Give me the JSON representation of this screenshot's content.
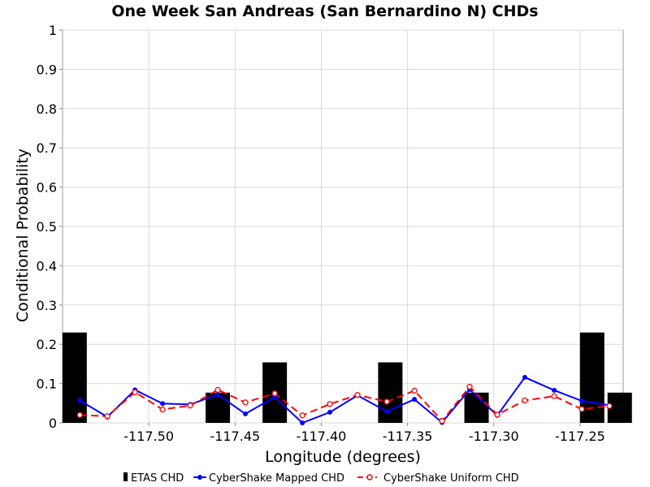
{
  "chart_data": {
    "type": "bar+line",
    "title": "One Week San Andreas (San Bernardino N) CHDs",
    "xlabel": "Longitude (degrees)",
    "ylabel": "Conditional Probability",
    "xlim": [
      -117.55,
      -117.225
    ],
    "ylim": [
      0,
      1
    ],
    "xticks": [
      "-117.50",
      "-117.45",
      "-117.40",
      "-117.35",
      "-117.30",
      "-117.25"
    ],
    "yticks": [
      "0",
      "0.1",
      "0.2",
      "0.3",
      "0.4",
      "0.5",
      "0.6",
      "0.7",
      "0.8",
      "0.9",
      "1"
    ],
    "grid": true,
    "legend_position": "bottom",
    "bars": {
      "name": "ETAS CHD",
      "color": "#000000",
      "x": [
        -117.543,
        -117.46,
        -117.427,
        -117.36,
        -117.31,
        -117.243,
        -117.227
      ],
      "values": [
        0.23,
        0.077,
        0.154,
        0.154,
        0.077,
        0.23,
        0.077
      ]
    },
    "series": [
      {
        "name": "CyberShake Mapped CHD",
        "color": "#0000ff",
        "style": "solid",
        "marker": "filled-circle",
        "x": [
          -117.54,
          -117.524,
          -117.508,
          -117.492,
          -117.476,
          -117.46,
          -117.444,
          -117.427,
          -117.411,
          -117.395,
          -117.379,
          -117.362,
          -117.346,
          -117.33,
          -117.314,
          -117.298,
          -117.282,
          -117.265,
          -117.249,
          -117.233
        ],
        "values": [
          0.057,
          0.015,
          0.084,
          0.049,
          0.047,
          0.072,
          0.023,
          0.066,
          0.0,
          0.027,
          0.07,
          0.029,
          0.06,
          0.001,
          0.085,
          0.019,
          0.116,
          0.083,
          0.056,
          0.045
        ]
      },
      {
        "name": "CyberShake Uniform CHD",
        "color": "#ff0000",
        "style": "dashed",
        "marker": "open-circle",
        "x": [
          -117.54,
          -117.524,
          -117.508,
          -117.492,
          -117.476,
          -117.46,
          -117.444,
          -117.427,
          -117.411,
          -117.395,
          -117.379,
          -117.362,
          -117.346,
          -117.33,
          -117.314,
          -117.298,
          -117.282,
          -117.265,
          -117.249,
          -117.233
        ],
        "values": [
          0.02,
          0.017,
          0.078,
          0.034,
          0.044,
          0.084,
          0.052,
          0.075,
          0.019,
          0.048,
          0.071,
          0.054,
          0.082,
          0.005,
          0.092,
          0.021,
          0.057,
          0.068,
          0.035,
          0.043
        ]
      }
    ]
  },
  "legend": {
    "items": [
      "ETAS CHD",
      "CyberShake Mapped CHD",
      "CyberShake Uniform CHD"
    ]
  }
}
